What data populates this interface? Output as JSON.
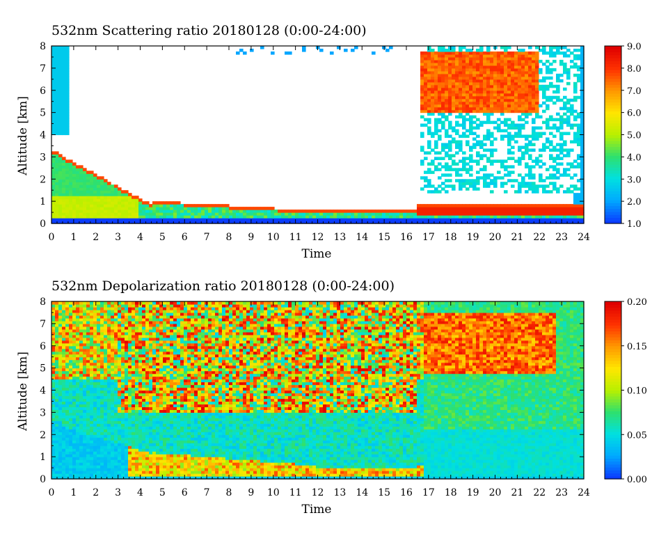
{
  "charts": [
    {
      "type": "heatmap",
      "title": "532nm Scattering ratio  20180128 (0:00-24:00)",
      "xlabel": "Time",
      "ylabel": "Altitude [km]",
      "xlim": [
        0,
        24
      ],
      "ylim": [
        0,
        8
      ],
      "x_ticks": [
        "0",
        "1",
        "2",
        "3",
        "4",
        "5",
        "6",
        "7",
        "8",
        "9",
        "10",
        "11",
        "12",
        "13",
        "14",
        "15",
        "16",
        "17",
        "18",
        "19",
        "20",
        "21",
        "22",
        "23",
        "24"
      ],
      "y_ticks": [
        "0",
        "1",
        "2",
        "3",
        "4",
        "5",
        "6",
        "7",
        "8"
      ],
      "colorbar": {
        "min": 1.0,
        "max": 9.0,
        "ticks": [
          "1.0",
          "2.0",
          "3.0",
          "4.0",
          "5.0",
          "6.0",
          "7.0",
          "8.0",
          "9.0"
        ]
      },
      "colorscale": [
        "#0a3cff",
        "#00aaff",
        "#00e0e0",
        "#2ee06e",
        "#b8f000",
        "#ffe600",
        "#ff9900",
        "#ff3300",
        "#e00000"
      ]
    },
    {
      "type": "heatmap",
      "title": "532nm Depolarization ratio  20180128 (0:00-24:00)",
      "xlabel": "Time",
      "ylabel": "Altitude [km]",
      "xlim": [
        0,
        24
      ],
      "ylim": [
        0,
        8
      ],
      "x_ticks": [
        "0",
        "1",
        "2",
        "3",
        "4",
        "5",
        "6",
        "7",
        "8",
        "9",
        "10",
        "11",
        "12",
        "13",
        "14",
        "15",
        "16",
        "17",
        "18",
        "19",
        "20",
        "21",
        "22",
        "23",
        "24"
      ],
      "y_ticks": [
        "0",
        "1",
        "2",
        "3",
        "4",
        "5",
        "6",
        "7",
        "8"
      ],
      "colorbar": {
        "min": 0.0,
        "max": 0.2,
        "ticks": [
          "0.00",
          "0.05",
          "0.10",
          "0.15",
          "0.20"
        ]
      },
      "colorscale": [
        "#0a3cff",
        "#00aaff",
        "#00e0e0",
        "#2ee06e",
        "#b8f000",
        "#ffe600",
        "#ff9900",
        "#ff3300",
        "#e00000"
      ]
    }
  ]
}
